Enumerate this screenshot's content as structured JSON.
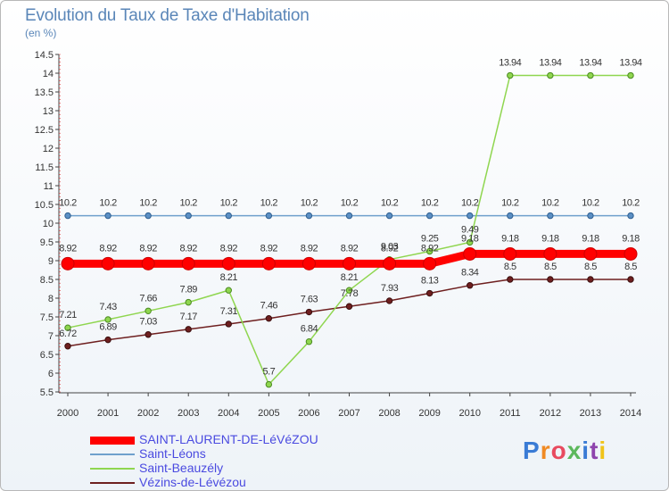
{
  "title": "Evolution du Taux de Taxe d'Habitation",
  "subtitle": "(en %)",
  "logo": "Proxiti",
  "colors": {
    "saint_laurent": "#ff0000",
    "saint_leons": "#6fa0cc",
    "saint_beauzely": "#8fd64f",
    "vezins": "#6e1f1f",
    "title": "#5a86b8",
    "legend_text": "#4a4ae0"
  },
  "chart_data": {
    "type": "line",
    "title": "Evolution du Taux de Taxe d'Habitation",
    "ylabel": "(en %)",
    "xlabel": "",
    "ylim": [
      5.5,
      14.5
    ],
    "yticks": [
      "5.5",
      "6",
      "6.5",
      "7",
      "7.5",
      "8",
      "8.5",
      "9",
      "9.5",
      "10",
      "10.5",
      "11",
      "11.5",
      "12",
      "12.5",
      "13",
      "13.5",
      "14",
      "14.5"
    ],
    "x": [
      "2000",
      "2001",
      "2002",
      "2003",
      "2004",
      "2005",
      "2006",
      "2007",
      "2008",
      "2009",
      "2010",
      "2011",
      "2012",
      "2013",
      "2014"
    ],
    "grid": false,
    "legend_position": "bottom-left",
    "series": [
      {
        "name": "SAINT-LAURENT-DE-LéVéZOU",
        "color": "#ff0000",
        "values": [
          8.92,
          8.92,
          8.92,
          8.92,
          8.92,
          8.92,
          8.92,
          8.92,
          8.92,
          8.92,
          9.18,
          9.18,
          9.18,
          9.18,
          9.18
        ],
        "labels": [
          "8.92",
          "8.92",
          "8.92",
          "8.92",
          "8.92",
          "8.92",
          "8.92",
          "8.92",
          "8.92",
          "8.92",
          "9.18",
          "9.18",
          "9.18",
          "9.18",
          "9.18"
        ]
      },
      {
        "name": "Saint-Léons",
        "color": "#6fa0cc",
        "values": [
          10.2,
          10.2,
          10.2,
          10.2,
          10.2,
          10.2,
          10.2,
          10.2,
          10.2,
          10.2,
          10.2,
          10.2,
          10.2,
          10.2,
          10.2
        ],
        "labels": [
          "10.2",
          "10.2",
          "10.2",
          "10.2",
          "10.2",
          "10.2",
          "10.2",
          "10.2",
          "10.2",
          "10.2",
          "10.2",
          "10.2",
          "10.2",
          "10.2",
          "10.2"
        ]
      },
      {
        "name": "Saint-Beauzély",
        "color": "#8fd64f",
        "values": [
          7.21,
          7.43,
          7.66,
          7.89,
          8.21,
          5.7,
          6.84,
          8.21,
          9.03,
          9.25,
          9.49,
          13.94,
          13.94,
          13.94,
          13.94
        ],
        "labels": [
          "7.21",
          "7.43",
          "7.66",
          "7.89",
          "8.21",
          "5.7",
          "6.84",
          "8.21",
          "9.03",
          "9.25",
          "9.49",
          "13.94",
          "13.94",
          "13.94",
          "13.94"
        ]
      },
      {
        "name": "Vézins-de-Lévézou",
        "color": "#6e1f1f",
        "values": [
          6.72,
          6.89,
          7.03,
          7.17,
          7.31,
          7.46,
          7.63,
          7.78,
          7.93,
          8.13,
          8.34,
          8.5,
          8.5,
          8.5,
          8.5
        ],
        "labels": [
          "6.72",
          "6.89",
          "7.03",
          "7.17",
          "7.31",
          "7.46",
          "7.63",
          "7.78",
          "7.93",
          "8.13",
          "8.34",
          "8.5",
          "8.5",
          "8.5",
          "8.5"
        ]
      }
    ]
  }
}
